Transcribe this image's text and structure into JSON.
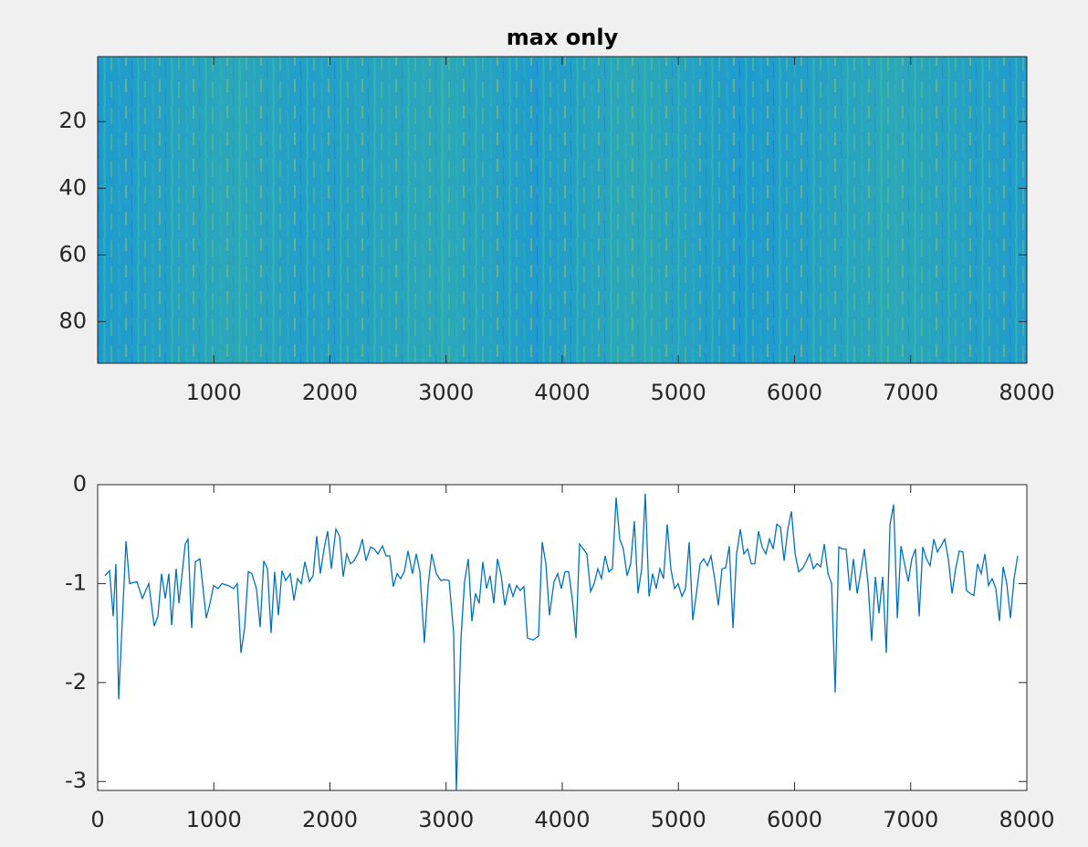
{
  "chart_data": [
    {
      "type": "heatmap",
      "title": "max only",
      "xlim": [
        0.5,
        8000.5
      ],
      "xticks": [
        1000,
        2000,
        3000,
        4000,
        5000,
        6000,
        7000,
        8000
      ],
      "ylim": [
        0.5,
        92.5
      ],
      "yticks": [
        20,
        40,
        60,
        80
      ],
      "y_reversed": true
    },
    {
      "type": "line",
      "xlim": [
        0,
        8000
      ],
      "xticks": [
        0,
        1000,
        2000,
        3000,
        4000,
        5000,
        6000,
        7000,
        8000
      ],
      "ylim": [
        -3.09,
        0
      ],
      "yticks": [
        -3,
        -2,
        -1,
        0
      ],
      "series": [
        {
          "color": "#0072bd",
          "x": [
            63,
            102,
            134,
            157,
            181,
            244,
            275,
            338,
            385,
            440,
            487,
            519,
            550,
            582,
            613,
            637,
            676,
            700,
            754,
            778,
            809,
            841,
            880,
            935,
            967,
            998,
            1037,
            1069,
            1124,
            1171,
            1202,
            1234,
            1265,
            1297,
            1328,
            1367,
            1399,
            1430,
            1462,
            1493,
            1524,
            1556,
            1587,
            1619,
            1658,
            1690,
            1721,
            1753,
            1784,
            1823,
            1855,
            1886,
            1917,
            1949,
            1980,
            2012,
            2051,
            2083,
            2114,
            2145,
            2177,
            2208,
            2248,
            2279,
            2310,
            2350,
            2381,
            2413,
            2452,
            2483,
            2515,
            2546,
            2578,
            2609,
            2640,
            2672,
            2711,
            2743,
            2774,
            2813,
            2845,
            2876,
            2916,
            2955,
            2986,
            3026,
            3065,
            3088,
            3128,
            3159,
            3191,
            3222,
            3253,
            3285,
            3316,
            3348,
            3379,
            3411,
            3442,
            3474,
            3505,
            3544,
            3576,
            3607,
            3638,
            3670,
            3701,
            3749,
            3796,
            3827,
            3859,
            3890,
            3929,
            3961,
            3992,
            4024,
            4055,
            4086,
            4118,
            4149,
            4181,
            4212,
            4244,
            4275,
            4306,
            4338,
            4369,
            4401,
            4432,
            4464,
            4495,
            4526,
            4558,
            4589,
            4621,
            4652,
            4684,
            4715,
            4747,
            4778,
            4809,
            4841,
            4872,
            4904,
            4935,
            4967,
            4998,
            5030,
            5061,
            5093,
            5124,
            5155,
            5187,
            5218,
            5250,
            5281,
            5312,
            5344,
            5375,
            5407,
            5438,
            5470,
            5501,
            5533,
            5564,
            5596,
            5627,
            5658,
            5690,
            5721,
            5753,
            5784,
            5816,
            5847,
            5879,
            5910,
            5942,
            5973,
            6005,
            6036,
            6067,
            6099,
            6130,
            6162,
            6193,
            6225,
            6256,
            6288,
            6319,
            6350,
            6381,
            6413,
            6444,
            6476,
            6507,
            6539,
            6570,
            6601,
            6633,
            6664,
            6696,
            6727,
            6759,
            6790,
            6822,
            6853,
            6885,
            6916,
            6947,
            6979,
            7010,
            7041,
            7073,
            7104,
            7136,
            7167,
            7199,
            7230,
            7261,
            7293,
            7324,
            7356,
            7387,
            7418,
            7450,
            7481,
            7513,
            7544,
            7576,
            7607,
            7639,
            7670,
            7701,
            7733,
            7764,
            7796,
            7827,
            7859,
            7890,
            7921
          ],
          "values": [
            -0.92,
            -0.87,
            -1.33,
            -0.8,
            -2.17,
            -0.57,
            -1.0,
            -0.98,
            -1.15,
            -1.0,
            -1.43,
            -1.33,
            -0.9,
            -1.15,
            -0.9,
            -1.42,
            -0.85,
            -1.2,
            -0.6,
            -0.55,
            -1.45,
            -0.78,
            -0.75,
            -1.35,
            -1.2,
            -1.02,
            -1.05,
            -1.0,
            -1.02,
            -1.05,
            -1.0,
            -1.7,
            -1.45,
            -0.88,
            -0.9,
            -1.05,
            -1.44,
            -0.77,
            -0.85,
            -1.5,
            -0.88,
            -1.32,
            -0.87,
            -0.97,
            -0.9,
            -1.17,
            -0.95,
            -1.0,
            -0.78,
            -0.98,
            -0.92,
            -0.52,
            -0.9,
            -0.65,
            -0.47,
            -0.85,
            -0.45,
            -0.52,
            -0.93,
            -0.7,
            -0.8,
            -0.77,
            -0.68,
            -0.55,
            -0.77,
            -0.63,
            -0.65,
            -0.7,
            -0.62,
            -0.72,
            -0.72,
            -1.03,
            -0.9,
            -0.95,
            -0.88,
            -0.67,
            -0.9,
            -0.7,
            -0.88,
            -1.6,
            -1.02,
            -0.7,
            -0.9,
            -0.97,
            -0.96,
            -0.97,
            -1.5,
            -3.09,
            -1.55,
            -0.98,
            -0.75,
            -1.38,
            -1.1,
            -1.2,
            -0.78,
            -1.05,
            -0.92,
            -1.2,
            -0.75,
            -0.92,
            -1.22,
            -1.0,
            -1.13,
            -1.02,
            -1.07,
            -1.03,
            -1.55,
            -1.57,
            -1.53,
            -0.58,
            -0.8,
            -1.32,
            -0.98,
            -0.9,
            -1.05,
            -0.88,
            -0.88,
            -1.15,
            -1.55,
            -0.6,
            -0.65,
            -0.7,
            -1.08,
            -1.0,
            -0.85,
            -0.95,
            -0.72,
            -0.88,
            -0.85,
            -0.13,
            -0.55,
            -0.65,
            -0.92,
            -0.8,
            -0.37,
            -1.1,
            -0.85,
            -0.09,
            -1.13,
            -0.9,
            -1.05,
            -0.85,
            -0.95,
            -0.4,
            -0.85,
            -1.05,
            -1.0,
            -1.13,
            -1.05,
            -0.58,
            -1.37,
            -1.1,
            -0.8,
            -0.75,
            -0.82,
            -0.72,
            -0.95,
            -1.22,
            -0.85,
            -0.84,
            -0.62,
            -1.45,
            -0.7,
            -0.45,
            -0.7,
            -0.65,
            -0.8,
            -0.8,
            -0.47,
            -0.63,
            -0.7,
            -0.55,
            -0.65,
            -0.4,
            -0.43,
            -0.77,
            -0.45,
            -0.27,
            -0.7,
            -0.88,
            -0.85,
            -0.78,
            -0.7,
            -0.85,
            -0.8,
            -0.83,
            -0.6,
            -0.9,
            -1.0,
            -2.1,
            -0.63,
            -0.65,
            -0.65,
            -1.07,
            -0.75,
            -1.1,
            -0.88,
            -0.65,
            -1.0,
            -1.58,
            -0.93,
            -1.3,
            -0.93,
            -1.7,
            -0.4,
            -0.2,
            -1.35,
            -0.62,
            -0.8,
            -0.98,
            -0.75,
            -0.65,
            -1.33,
            -0.63,
            -0.75,
            -0.82,
            -0.55,
            -0.68,
            -0.62,
            -0.55,
            -0.75,
            -1.1,
            -0.85,
            -0.67,
            -0.68,
            -1.07,
            -1.1,
            -1.12,
            -0.8,
            -0.9,
            -0.7,
            -1.02,
            -0.95,
            -1.05,
            -1.38,
            -0.83,
            -1.0,
            -1.35,
            -0.95,
            -0.72
          ]
        }
      ]
    }
  ]
}
